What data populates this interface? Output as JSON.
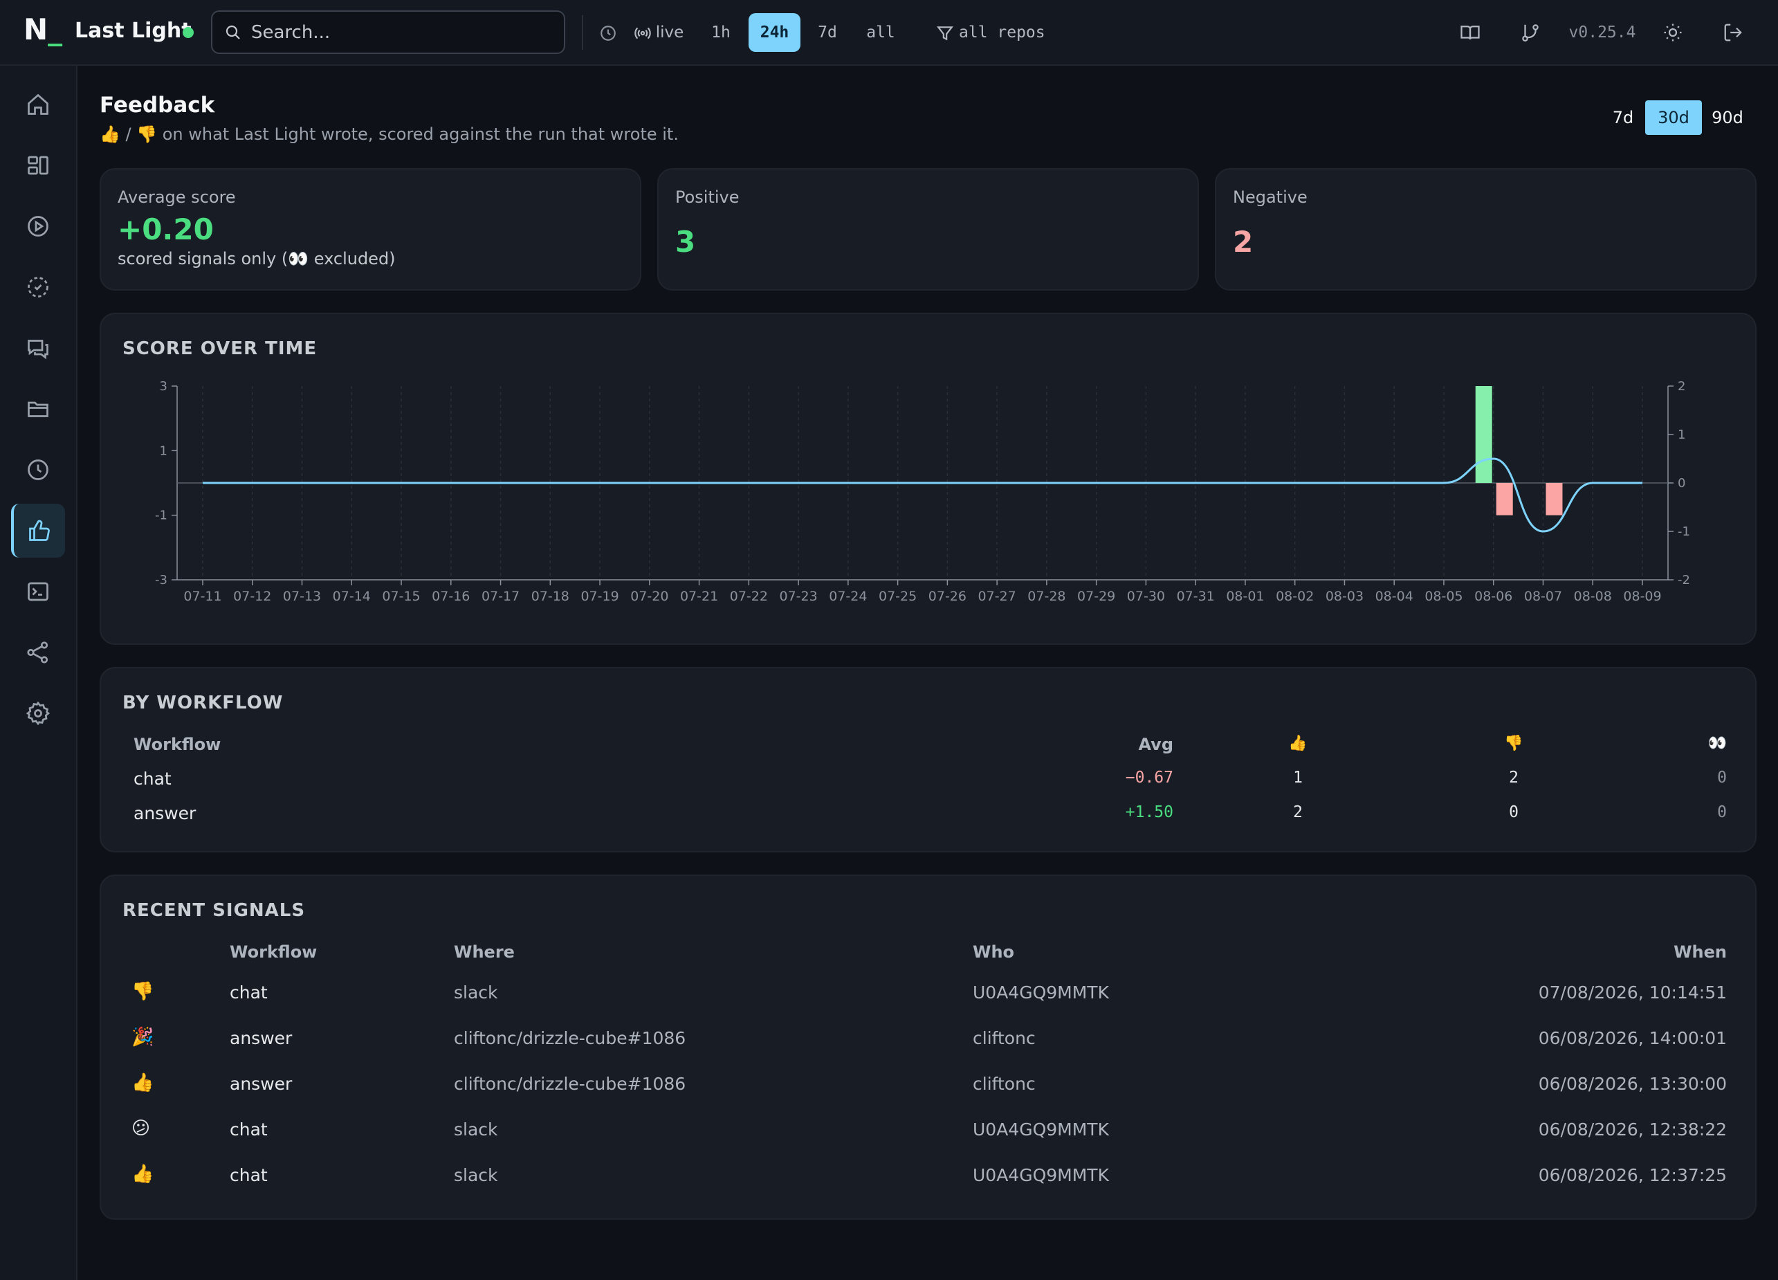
{
  "topbar": {
    "logo": "N",
    "app_name": "Last Light",
    "search_placeholder": "Search...",
    "live_label": "live",
    "ranges": [
      "1h",
      "24h",
      "7d",
      "all"
    ],
    "active_range": "24h",
    "repo_filter": "all repos",
    "version": "v0.25.4"
  },
  "sidebar": {
    "items": [
      "home-icon",
      "dashboard-icon",
      "play-icon",
      "scan-icon",
      "messages-icon",
      "folder-icon",
      "clock-icon",
      "thumbs-up-icon",
      "terminal-icon",
      "share-icon",
      "settings-icon"
    ],
    "active": "thumbs-up-icon"
  },
  "page": {
    "title": "Feedback",
    "subtitle": "👍 / 👎 on what Last Light wrote, scored against the run that wrote it.",
    "periods": [
      "7d",
      "30d",
      "90d"
    ],
    "active_period": "30d"
  },
  "stats": {
    "avg_label": "Average score",
    "avg_value": "+0.20",
    "avg_note": "scored signals only (👀 excluded)",
    "positive_label": "Positive",
    "positive_value": "3",
    "negative_label": "Negative",
    "negative_value": "2"
  },
  "chart_title": "SCORE OVER TIME",
  "chart_data": {
    "type": "bar",
    "x": [
      "07-11",
      "07-12",
      "07-13",
      "07-14",
      "07-15",
      "07-16",
      "07-17",
      "07-18",
      "07-19",
      "07-20",
      "07-21",
      "07-22",
      "07-23",
      "07-24",
      "07-25",
      "07-26",
      "07-27",
      "07-28",
      "07-29",
      "07-30",
      "07-31",
      "08-01",
      "08-02",
      "08-03",
      "08-04",
      "08-05",
      "08-06",
      "08-07",
      "08-08",
      "08-09"
    ],
    "bars": [
      {
        "x": "08-06",
        "value": 3
      },
      {
        "x": "08-06",
        "value": -1
      },
      {
        "x": "08-07",
        "value": -1
      }
    ],
    "line_points": [
      {
        "x": "08-05",
        "value": 0
      },
      {
        "x": "08-06",
        "value": 0.5
      },
      {
        "x": "08-07",
        "value": -1
      },
      {
        "x": "08-08",
        "value": 0
      },
      {
        "x": "08-09",
        "value": 0
      }
    ],
    "y_left_ticks": [
      3,
      1,
      -1,
      -3
    ],
    "y_left_range": [
      -3,
      3
    ],
    "y_right_ticks": [
      2,
      1,
      0,
      -1,
      -2
    ],
    "y_right_range": [
      -2,
      2
    ],
    "colors": {
      "positive": "#86efac",
      "negative": "#fca5a5",
      "line": "#7dd3fc"
    }
  },
  "by_workflow": {
    "title": "BY WORKFLOW",
    "headers": {
      "workflow": "Workflow",
      "avg": "Avg",
      "up": "👍",
      "down": "👎",
      "eyes": "👀"
    },
    "rows": [
      {
        "workflow": "chat",
        "avg": "−0.67",
        "up": "1",
        "down": "2",
        "eyes": "0",
        "tone": "neg"
      },
      {
        "workflow": "answer",
        "avg": "+1.50",
        "up": "2",
        "down": "0",
        "eyes": "0",
        "tone": "pos"
      }
    ]
  },
  "recent": {
    "title": "RECENT SIGNALS",
    "headers": {
      "workflow": "Workflow",
      "where": "Where",
      "who": "Who",
      "when": "When"
    },
    "rows": [
      {
        "icon": "👎",
        "workflow": "chat",
        "where": "slack",
        "who": "U0A4GQ9MMTK",
        "when": "07/08/2026, 10:14:51"
      },
      {
        "icon": "🎉",
        "workflow": "answer",
        "where": "cliftonc/drizzle-cube#1086",
        "who": "cliftonc",
        "when": "06/08/2026, 14:00:01"
      },
      {
        "icon": "👍",
        "workflow": "answer",
        "where": "cliftonc/drizzle-cube#1086",
        "who": "cliftonc",
        "when": "06/08/2026, 13:30:00"
      },
      {
        "icon": "😕",
        "workflow": "chat",
        "where": "slack",
        "who": "U0A4GQ9MMTK",
        "when": "06/08/2026, 12:38:22"
      },
      {
        "icon": "👍",
        "workflow": "chat",
        "where": "slack",
        "who": "U0A4GQ9MMTK",
        "when": "06/08/2026, 12:37:25"
      }
    ]
  }
}
